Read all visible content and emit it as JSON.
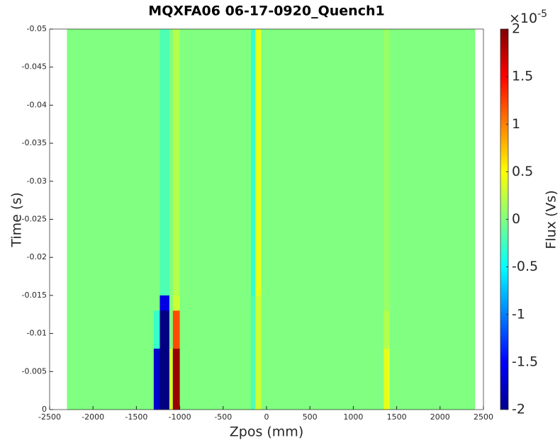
{
  "chart_data": {
    "type": "heatmap",
    "title": "MQXFA06 06-17-0920_Quench1",
    "x_label": "Zpos (mm)",
    "y_label": "Time (s)",
    "colorbar_label": "Flux (Vs)",
    "colorbar_multiplier": "×10",
    "colorbar_exponent": "-5",
    "colormap": "jet",
    "y_direction": "reverse",
    "xbins": [
      -2300,
      -1350,
      -1300,
      -1230,
      -1120,
      -1080,
      -1000,
      -250,
      -180,
      -130,
      -60,
      1350,
      1420,
      2400
    ],
    "ybins": [
      -0.05,
      -0.015,
      -0.013,
      -0.008,
      0
    ],
    "z": [
      [
        0,
        0,
        0,
        -0.2,
        0,
        0.2,
        0,
        0,
        -0.3,
        0.4,
        0,
        0.1,
        0
      ],
      [
        0,
        0,
        0,
        -1.6,
        0,
        0.3,
        0,
        0,
        -0.2,
        0.3,
        0,
        0.1,
        0
      ],
      [
        0,
        0,
        -0.3,
        -2,
        0,
        1.2,
        0,
        0,
        -0.2,
        0.3,
        0,
        0.2,
        0
      ],
      [
        0,
        0,
        -1.7,
        -2,
        0.3,
        1.9,
        0,
        0,
        -0.2,
        0.3,
        0,
        0.4,
        0
      ]
    ],
    "xlim": [
      -2500,
      2500
    ],
    "xticks": [
      -2500,
      -2000,
      -1500,
      -1000,
      -500,
      0,
      500,
      1000,
      1500,
      2000,
      2500
    ],
    "ylim": [
      -0.05,
      0
    ],
    "yticks": [
      -0.05,
      -0.045,
      -0.04,
      -0.035,
      -0.03,
      -0.025,
      -0.02,
      -0.015,
      -0.01,
      -0.005,
      0
    ],
    "clim": [
      -2,
      2
    ],
    "cticks": [
      -2,
      -1.5,
      -1,
      -0.5,
      0,
      0.5,
      1,
      1.5,
      2
    ]
  }
}
